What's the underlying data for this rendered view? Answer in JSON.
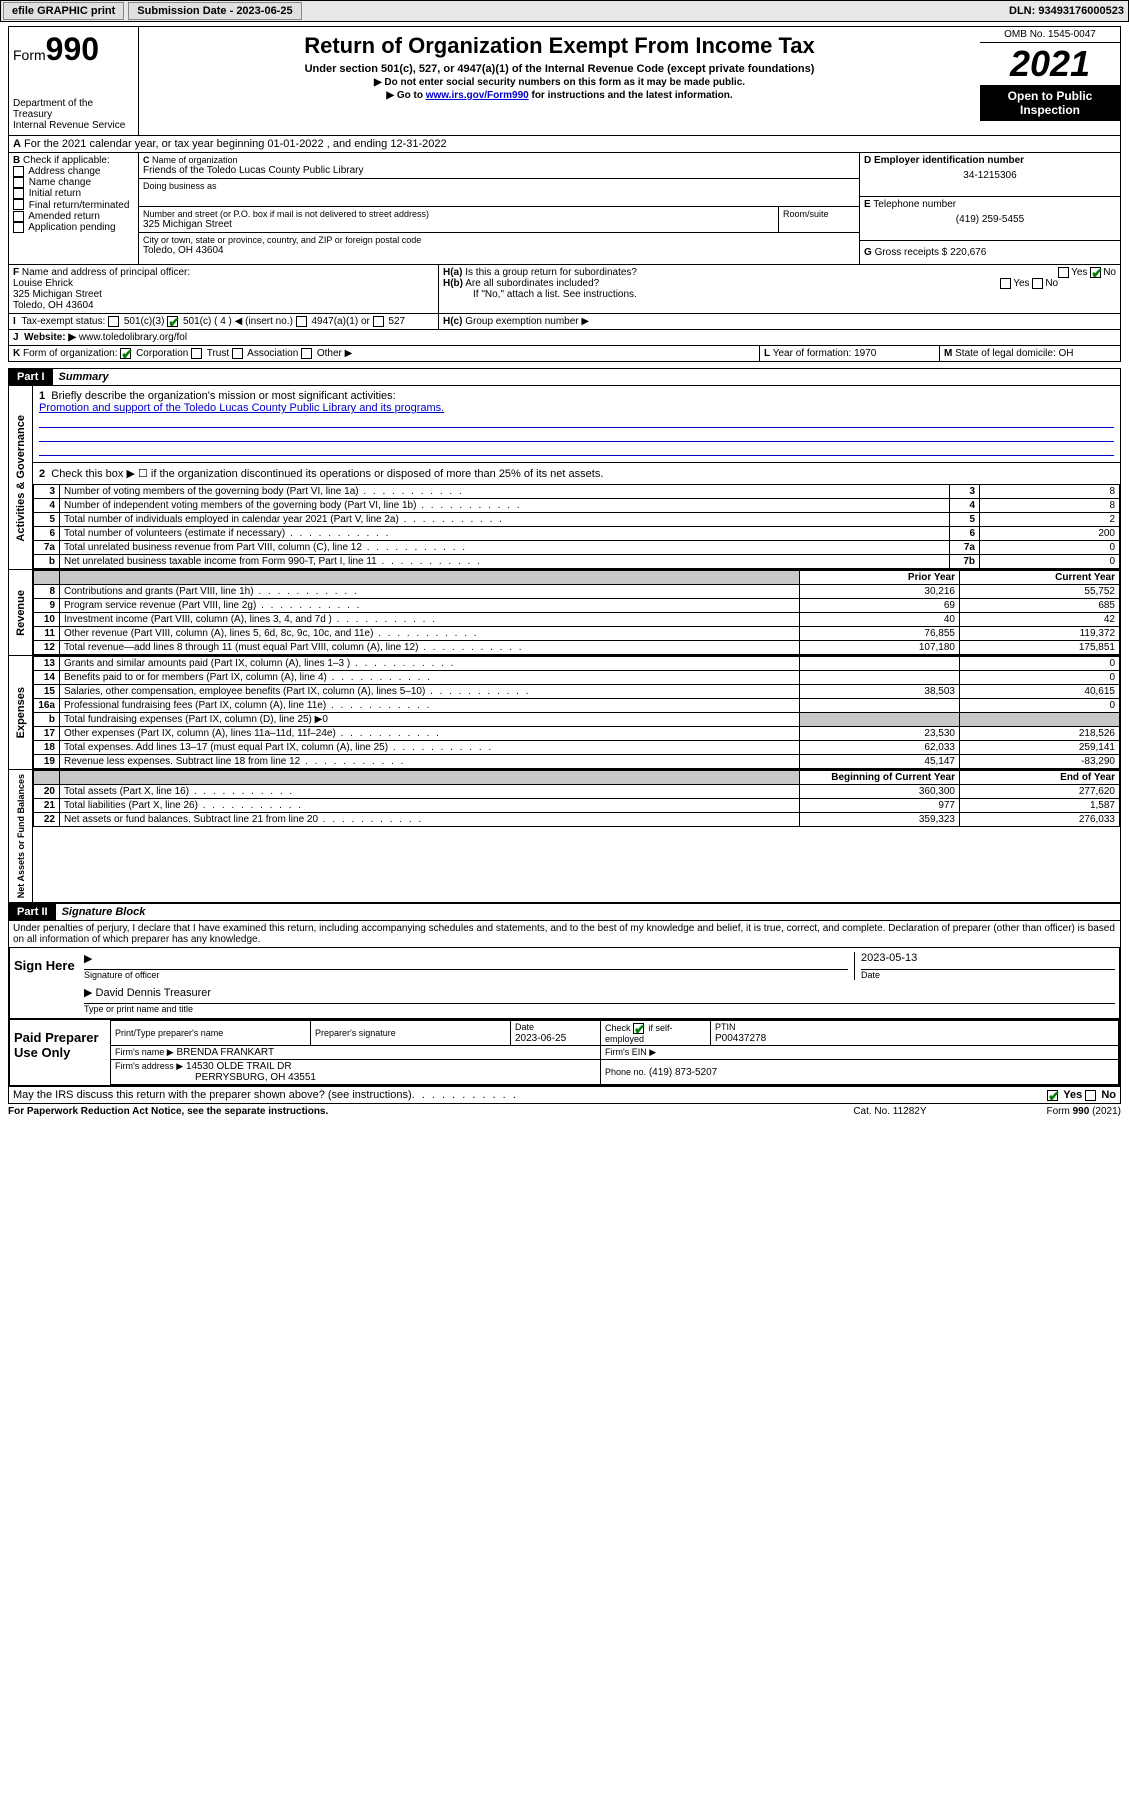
{
  "topbar": {
    "efile": "efile GRAPHIC print",
    "submission_label": "Submission Date - 2023-06-25",
    "dln_label": "DLN: 93493176000523"
  },
  "header": {
    "form_prefix": "Form",
    "form_number": "990",
    "dept": "Department of the Treasury\nInternal Revenue Service",
    "title": "Return of Organization Exempt From Income Tax",
    "sub1": "Under section 501(c), 527, or 4947(a)(1) of the Internal Revenue Code (except private foundations)",
    "sub2": "▶ Do not enter social security numbers on this form as it may be made public.",
    "sub3_pre": "▶ Go to ",
    "sub3_link": "www.irs.gov/Form990",
    "sub3_post": " for instructions and the latest information.",
    "omb": "OMB No. 1545-0047",
    "year": "2021",
    "open": "Open to Public Inspection"
  },
  "A": {
    "text": "For the 2021 calendar year, or tax year beginning 01-01-2022  , and ending 12-31-2022"
  },
  "B": {
    "label": "Check if applicable:",
    "opts": [
      "Address change",
      "Name change",
      "Initial return",
      "Final return/terminated",
      "Amended return",
      "Application pending"
    ]
  },
  "C": {
    "name_label": "Name of organization",
    "name": "Friends of the Toledo Lucas County Public Library",
    "dba_label": "Doing business as",
    "addr_label": "Number and street (or P.O. box if mail is not delivered to street address)",
    "room_label": "Room/suite",
    "addr": "325 Michigan Street",
    "city_label": "City or town, state or province, country, and ZIP or foreign postal code",
    "city": "Toledo, OH  43604"
  },
  "D": {
    "label": "Employer identification number",
    "val": "34-1215306"
  },
  "E": {
    "label": "Telephone number",
    "val": "(419) 259-5455"
  },
  "G": {
    "label": "Gross receipts $",
    "val": "220,676"
  },
  "F": {
    "label": "Name and address of principal officer:",
    "name": "Louise Ehrick",
    "addr": "325 Michigan Street\nToledo, OH  43604"
  },
  "H": {
    "a": "Is this a group return for subordinates?",
    "b": "Are all subordinates included?",
    "note": "If \"No,\" attach a list. See instructions.",
    "c": "Group exemption number ▶"
  },
  "I": {
    "label": "Tax-exempt status:",
    "c3": "501(c)(3)",
    "c4": "501(c) ( 4 ) ◀ (insert no.)",
    "a1": "4947(a)(1) or",
    "s527": "527"
  },
  "J": {
    "label": "Website: ▶",
    "val": "www.toledolibrary.org/fol"
  },
  "K": {
    "label": "Form of organization:",
    "opts": [
      "Corporation",
      "Trust",
      "Association",
      "Other ▶"
    ]
  },
  "L": {
    "label": "Year of formation:",
    "val": "1970"
  },
  "M": {
    "label": "State of legal domicile:",
    "val": "OH"
  },
  "part1": {
    "hdr": "Part I",
    "title": "Summary",
    "q1": "Briefly describe the organization's mission or most significant activities:",
    "q1a": "Promotion and support of the Toledo Lucas County Public Library and its programs.",
    "q2": "Check this box ▶ ☐ if the organization discontinued its operations or disposed of more than 25% of its net assets.",
    "rows_top": [
      {
        "n": "3",
        "d": "Number of voting members of the governing body (Part VI, line 1a)",
        "v": "8"
      },
      {
        "n": "4",
        "d": "Number of independent voting members of the governing body (Part VI, line 1b)",
        "v": "8"
      },
      {
        "n": "5",
        "d": "Total number of individuals employed in calendar year 2021 (Part V, line 2a)",
        "v": "2"
      },
      {
        "n": "6",
        "d": "Total number of volunteers (estimate if necessary)",
        "v": "200"
      },
      {
        "n": "7a",
        "d": "Total unrelated business revenue from Part VIII, column (C), line 12",
        "v": "0"
      },
      {
        "n": "b",
        "d": "Net unrelated business taxable income from Form 990-T, Part I, line 11",
        "rn": "7b",
        "v": "0"
      }
    ],
    "col_prior": "Prior Year",
    "col_current": "Current Year",
    "revenue": [
      {
        "n": "8",
        "d": "Contributions and grants (Part VIII, line 1h)",
        "p": "30,216",
        "c": "55,752"
      },
      {
        "n": "9",
        "d": "Program service revenue (Part VIII, line 2g)",
        "p": "69",
        "c": "685"
      },
      {
        "n": "10",
        "d": "Investment income (Part VIII, column (A), lines 3, 4, and 7d )",
        "p": "40",
        "c": "42"
      },
      {
        "n": "11",
        "d": "Other revenue (Part VIII, column (A), lines 5, 6d, 8c, 9c, 10c, and 11e)",
        "p": "76,855",
        "c": "119,372"
      },
      {
        "n": "12",
        "d": "Total revenue—add lines 8 through 11 (must equal Part VIII, column (A), line 12)",
        "p": "107,180",
        "c": "175,851"
      }
    ],
    "expenses": [
      {
        "n": "13",
        "d": "Grants and similar amounts paid (Part IX, column (A), lines 1–3 )",
        "p": "",
        "c": "0"
      },
      {
        "n": "14",
        "d": "Benefits paid to or for members (Part IX, column (A), line 4)",
        "p": "",
        "c": "0"
      },
      {
        "n": "15",
        "d": "Salaries, other compensation, employee benefits (Part IX, column (A), lines 5–10)",
        "p": "38,503",
        "c": "40,615"
      },
      {
        "n": "16a",
        "d": "Professional fundraising fees (Part IX, column (A), line 11e)",
        "p": "",
        "c": "0"
      },
      {
        "n": "b",
        "d": "Total fundraising expenses (Part IX, column (D), line 25) ▶0",
        "shade": true
      },
      {
        "n": "17",
        "d": "Other expenses (Part IX, column (A), lines 11a–11d, 11f–24e)",
        "p": "23,530",
        "c": "218,526"
      },
      {
        "n": "18",
        "d": "Total expenses. Add lines 13–17 (must equal Part IX, column (A), line 25)",
        "p": "62,033",
        "c": "259,141"
      },
      {
        "n": "19",
        "d": "Revenue less expenses. Subtract line 18 from line 12",
        "p": "45,147",
        "c": "-83,290"
      }
    ],
    "col_begin": "Beginning of Current Year",
    "col_end": "End of Year",
    "assets": [
      {
        "n": "20",
        "d": "Total assets (Part X, line 16)",
        "p": "360,300",
        "c": "277,620"
      },
      {
        "n": "21",
        "d": "Total liabilities (Part X, line 26)",
        "p": "977",
        "c": "1,587"
      },
      {
        "n": "22",
        "d": "Net assets or fund balances. Subtract line 21 from line 20",
        "p": "359,323",
        "c": "276,033"
      }
    ]
  },
  "part2": {
    "hdr": "Part II",
    "title": "Signature Block",
    "penalty": "Under penalties of perjury, I declare that I have examined this return, including accompanying schedules and statements, and to the best of my knowledge and belief, it is true, correct, and complete. Declaration of preparer (other than officer) is based on all information of which preparer has any knowledge.",
    "sign_here": "Sign Here",
    "sig_officer": "Signature of officer",
    "sig_date": "2023-05-13",
    "date_lbl": "Date",
    "officer_name": "David Dennis Treasurer",
    "type_name": "Type or print name and title",
    "paid": "Paid Preparer Use Only",
    "prep_name_lbl": "Print/Type preparer's name",
    "prep_sig_lbl": "Preparer's signature",
    "prep_date_lbl": "Date",
    "prep_date": "2023-06-25",
    "check_self": "Check ☑ if self-employed",
    "ptin_lbl": "PTIN",
    "ptin": "P00437278",
    "firm_name_lbl": "Firm's name   ▶",
    "firm_name": "BRENDA FRANKART",
    "firm_ein_lbl": "Firm's EIN ▶",
    "firm_addr_lbl": "Firm's address ▶",
    "firm_addr": "14530 OLDE TRAIL DR",
    "firm_city": "PERRYSBURG, OH  43551",
    "phone_lbl": "Phone no.",
    "phone": "(419) 873-5207",
    "irs_q": "May the IRS discuss this return with the preparer shown above? (see instructions)",
    "yes": "Yes",
    "no": "No"
  },
  "footer": {
    "pra": "For Paperwork Reduction Act Notice, see the separate instructions.",
    "cat": "Cat. No. 11282Y",
    "form": "Form 990 (2021)"
  },
  "labels": {
    "activities": "Activities & Governance",
    "revenue": "Revenue",
    "expenses": "Expenses",
    "assets": "Net Assets or Fund Balances"
  }
}
